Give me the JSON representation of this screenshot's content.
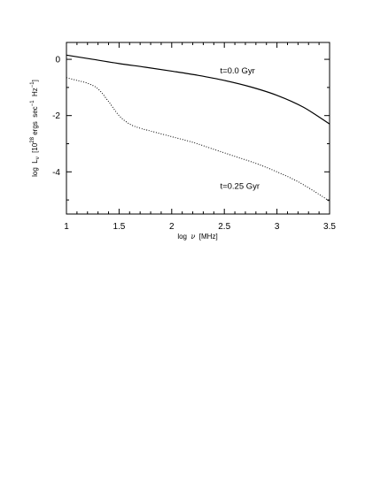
{
  "chart_data": {
    "type": "line",
    "title": "",
    "xlabel": "log ν [MHz]",
    "ylabel": "log L_ν [10^28 ergs sec^-1 Hz^-1]",
    "xlim": [
      1,
      3.5
    ],
    "ylim": [
      -5.5,
      0.6
    ],
    "x_ticks": [
      1,
      1.5,
      2,
      2.5,
      3,
      3.5
    ],
    "x_tick_labels": [
      "1",
      "1.5",
      "2",
      "2.5",
      "3",
      "3.5"
    ],
    "y_ticks": [
      0,
      -2,
      -4
    ],
    "y_tick_labels": [
      "0",
      "-2",
      "-4"
    ],
    "grid": false,
    "series": [
      {
        "name": "t=0.0 Gyr",
        "style": "solid",
        "x": [
          1.0,
          1.25,
          1.5,
          1.75,
          2.0,
          2.25,
          2.5,
          2.75,
          3.0,
          3.25,
          3.5
        ],
        "y": [
          0.15,
          0.0,
          -0.15,
          -0.28,
          -0.42,
          -0.57,
          -0.75,
          -0.98,
          -1.28,
          -1.7,
          -2.3
        ]
      },
      {
        "name": "t=0.25 Gyr",
        "style": "dotted",
        "x": [
          1.0,
          1.1,
          1.2,
          1.3,
          1.4,
          1.5,
          1.6,
          1.7,
          1.8,
          2.0,
          2.2,
          2.4,
          2.6,
          2.8,
          3.0,
          3.2,
          3.4,
          3.5
        ],
        "y": [
          -0.65,
          -0.75,
          -0.85,
          -1.05,
          -1.5,
          -2.0,
          -2.3,
          -2.45,
          -2.55,
          -2.75,
          -2.95,
          -3.2,
          -3.45,
          -3.7,
          -4.0,
          -4.35,
          -4.8,
          -5.05
        ]
      }
    ],
    "annotations": [
      {
        "text": "t=0.0 Gyr",
        "x": 2.46,
        "y": -0.5
      },
      {
        "text": "t=0.25 Gyr",
        "x": 2.46,
        "y": -4.6
      }
    ]
  }
}
